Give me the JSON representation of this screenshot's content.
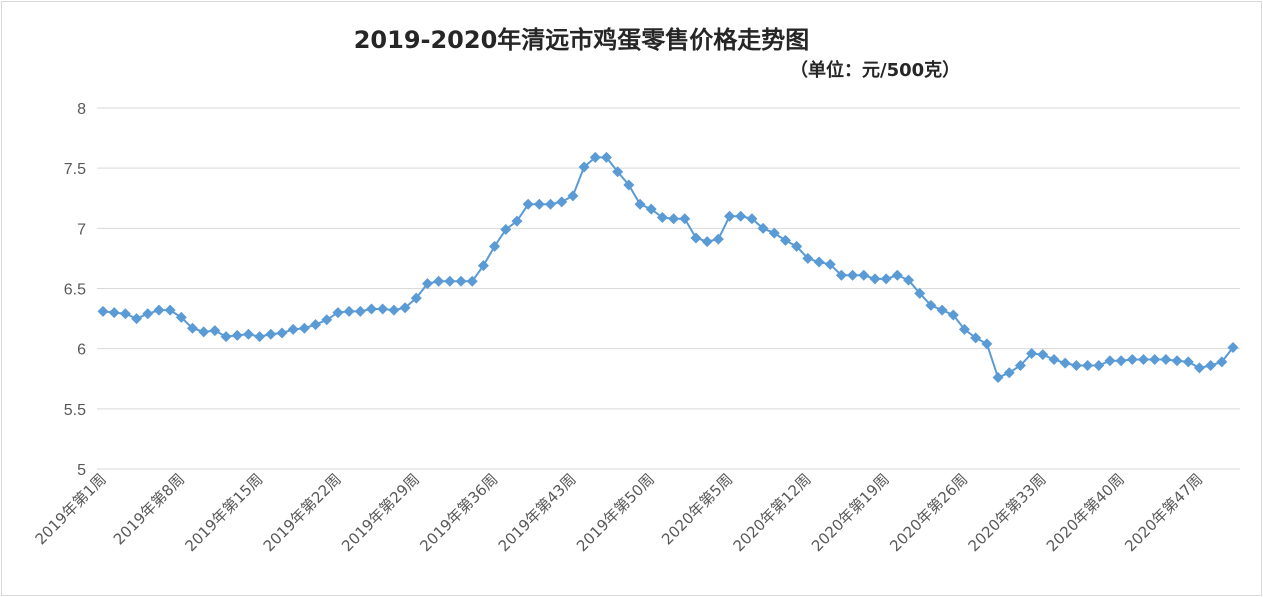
{
  "chart_data": {
    "type": "line",
    "title": "2019-2020年清远市鸡蛋零售价格走势图",
    "subtitle": "（单位：元/500克）",
    "xlabel": "",
    "ylabel": "",
    "ylim": [
      5,
      8
    ],
    "yticks": [
      "5",
      "5.5",
      "6",
      "6.5",
      "7",
      "7.5",
      "8"
    ],
    "grid": true,
    "legend": "none",
    "color": "#5b9bd5",
    "categories": [
      "2019年第1周",
      "2019年第2周",
      "2019年第3周",
      "2019年第4周",
      "2019年第5周",
      "2019年第6周",
      "2019年第7周",
      "2019年第8周",
      "2019年第9周",
      "2019年第10周",
      "2019年第11周",
      "2019年第12周",
      "2019年第13周",
      "2019年第14周",
      "2019年第15周",
      "2019年第16周",
      "2019年第17周",
      "2019年第18周",
      "2019年第19周",
      "2019年第20周",
      "2019年第21周",
      "2019年第22周",
      "2019年第23周",
      "2019年第24周",
      "2019年第25周",
      "2019年第26周",
      "2019年第27周",
      "2019年第28周",
      "2019年第29周",
      "2019年第30周",
      "2019年第31周",
      "2019年第32周",
      "2019年第33周",
      "2019年第34周",
      "2019年第35周",
      "2019年第36周",
      "2019年第37周",
      "2019年第38周",
      "2019年第39周",
      "2019年第40周",
      "2019年第41周",
      "2019年第42周",
      "2019年第43周",
      "2019年第44周",
      "2019年第45周",
      "2019年第46周",
      "2019年第47周",
      "2019年第48周",
      "2019年第49周",
      "2019年第50周",
      "2019年第51周",
      "2019年第52周",
      "2020年第1周",
      "2020年第2周",
      "2020年第3周",
      "2020年第4周",
      "2020年第5周",
      "2020年第6周",
      "2020年第7周",
      "2020年第8周",
      "2020年第9周",
      "2020年第10周",
      "2020年第11周",
      "2020年第12周",
      "2020年第13周",
      "2020年第14周",
      "2020年第15周",
      "2020年第16周",
      "2020年第17周",
      "2020年第18周",
      "2020年第19周",
      "2020年第20周",
      "2020年第21周",
      "2020年第22周",
      "2020年第23周",
      "2020年第24周",
      "2020年第25周",
      "2020年第26周",
      "2020年第27周",
      "2020年第28周",
      "2020年第29周",
      "2020年第30周",
      "2020年第31周",
      "2020年第32周",
      "2020年第33周",
      "2020年第34周",
      "2020年第35周",
      "2020年第36周",
      "2020年第37周",
      "2020年第38周",
      "2020年第39周",
      "2020年第40周",
      "2020年第41周",
      "2020年第42周",
      "2020年第43周",
      "2020年第44周",
      "2020年第45周",
      "2020年第46周",
      "2020年第47周",
      "2020年第48周",
      "2020年第49周",
      "2020年第50周"
    ],
    "xtick_every": 7,
    "values": [
      6.31,
      6.3,
      6.29,
      6.25,
      6.29,
      6.32,
      6.32,
      6.26,
      6.17,
      6.14,
      6.15,
      6.1,
      6.11,
      6.12,
      6.1,
      6.12,
      6.13,
      6.16,
      6.17,
      6.2,
      6.24,
      6.3,
      6.31,
      6.31,
      6.33,
      6.33,
      6.32,
      6.34,
      6.42,
      6.54,
      6.56,
      6.56,
      6.56,
      6.56,
      6.69,
      6.85,
      6.99,
      7.06,
      7.2,
      7.2,
      7.2,
      7.22,
      7.27,
      7.51,
      7.59,
      7.59,
      7.47,
      7.36,
      7.2,
      7.16,
      7.09,
      7.08,
      7.08,
      6.92,
      6.89,
      6.91,
      7.1,
      7.1,
      7.08,
      7.0,
      6.96,
      6.9,
      6.85,
      6.75,
      6.72,
      6.7,
      6.61,
      6.61,
      6.61,
      6.58,
      6.58,
      6.61,
      6.57,
      6.46,
      6.36,
      6.32,
      6.28,
      6.16,
      6.09,
      6.04,
      5.76,
      5.8,
      5.86,
      5.96,
      5.95,
      5.91,
      5.88,
      5.86,
      5.86,
      5.86,
      5.9,
      5.9,
      5.91,
      5.91,
      5.91,
      5.91,
      5.9,
      5.89,
      5.84,
      5.86,
      5.89,
      6.01
    ]
  }
}
